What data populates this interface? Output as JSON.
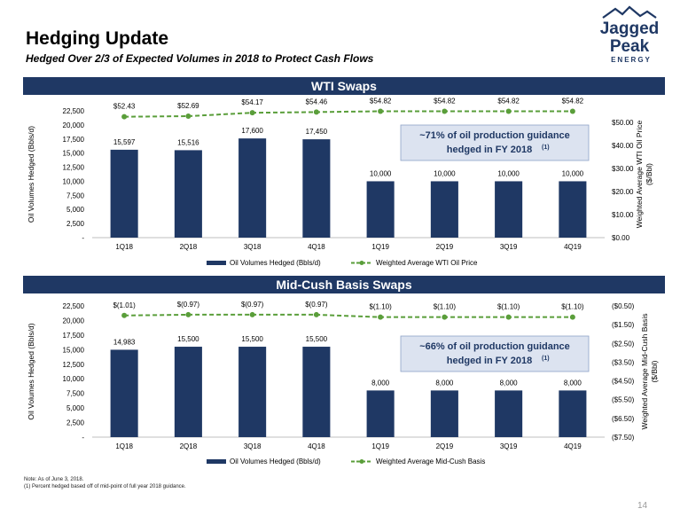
{
  "header": {
    "title": "Hedging Update",
    "subtitle": "Hedged Over 2/3 of Expected Volumes in 2018 to Protect Cash Flows"
  },
  "logo": {
    "line1": "Jagged",
    "line2": "Peak",
    "line3": "ENERGY"
  },
  "colors": {
    "bar": "#1f3864",
    "line": "#5a9e3a",
    "callout_bg": "#dce3f0",
    "callout_text": "#1f3864"
  },
  "chart_data": [
    {
      "type": "bar",
      "title": "WTI Swaps",
      "categories": [
        "1Q18",
        "2Q18",
        "3Q18",
        "4Q18",
        "1Q19",
        "2Q19",
        "3Q19",
        "4Q19"
      ],
      "series": [
        {
          "name": "Oil Volumes Hedged (Bbls/d)",
          "type": "bar",
          "axis": "left",
          "values": [
            15597,
            15516,
            17600,
            17450,
            10000,
            10000,
            10000,
            10000
          ],
          "labels": [
            "15,597",
            "15,516",
            "17,600",
            "17,450",
            "10,000",
            "10,000",
            "10,000",
            "10,000"
          ]
        },
        {
          "name": "Weighted Average WTI Oil Price",
          "type": "line",
          "axis": "right",
          "values": [
            52.43,
            52.69,
            54.17,
            54.46,
            54.82,
            54.82,
            54.82,
            54.82
          ],
          "labels": [
            "$52.43",
            "$52.69",
            "$54.17",
            "$54.46",
            "$54.82",
            "$54.82",
            "$54.82",
            "$54.82"
          ]
        }
      ],
      "ylabel": "Oil Volumes Hedged (Bbls/d)",
      "ylabel_right": "Weighted Average WTI Oil Price ($/Bbl)",
      "ylim": [
        0,
        22500
      ],
      "ylim_right": [
        0,
        55
      ],
      "yticks": [
        "-",
        "2,500",
        "5,000",
        "7,500",
        "10,000",
        "12,500",
        "15,000",
        "17,500",
        "20,000",
        "22,500"
      ],
      "yticks_right": [
        {
          "value": 0,
          "label": "$0.00"
        },
        {
          "value": 10,
          "label": "$10.00"
        },
        {
          "value": 20,
          "label": "$20.00"
        },
        {
          "value": 30,
          "label": "$30.00"
        },
        {
          "value": 40,
          "label": "$40.00"
        },
        {
          "value": 50,
          "label": "$50.00"
        }
      ],
      "callout": {
        "line1": "~71% of oil production guidance",
        "line2": "hedged in FY 2018",
        "sup": "(1)"
      },
      "legend": "bottom",
      "grid": false
    },
    {
      "type": "bar",
      "title": "Mid-Cush Basis Swaps",
      "categories": [
        "1Q18",
        "2Q18",
        "3Q18",
        "4Q18",
        "1Q19",
        "2Q19",
        "3Q19",
        "4Q19"
      ],
      "series": [
        {
          "name": "Oil Volumes Hedged (Bbls/d)",
          "type": "bar",
          "axis": "left",
          "values": [
            14983,
            15500,
            15500,
            15500,
            8000,
            8000,
            8000,
            8000
          ],
          "labels": [
            "14,983",
            "15,500",
            "15,500",
            "15,500",
            "8,000",
            "8,000",
            "8,000",
            "8,000"
          ]
        },
        {
          "name": "Weighted Average Mid-Cush Basis",
          "type": "line",
          "axis": "right",
          "values": [
            -1.01,
            -0.97,
            -0.97,
            -0.97,
            -1.1,
            -1.1,
            -1.1,
            -1.1
          ],
          "labels": [
            "$(1.01)",
            "$(0.97)",
            "$(0.97)",
            "$(0.97)",
            "$(1.10)",
            "$(1.10)",
            "$(1.10)",
            "$(1.10)"
          ]
        }
      ],
      "ylabel": "Oil Volumes Hedged (Bbls/d)",
      "ylabel_right": "Weighted Average Mid-Cush Basis ($/Bbl)",
      "ylim": [
        0,
        22500
      ],
      "ylim_right": [
        -7.5,
        -0.5
      ],
      "yticks": [
        "-",
        "2,500",
        "5,000",
        "7,500",
        "10,000",
        "12,500",
        "15,000",
        "17,500",
        "20,000",
        "22,500"
      ],
      "yticks_right": [
        {
          "value": -7.5,
          "label": "($7.50)"
        },
        {
          "value": -6.5,
          "label": "($6.50)"
        },
        {
          "value": -5.5,
          "label": "($5.50)"
        },
        {
          "value": -4.5,
          "label": "($4.50)"
        },
        {
          "value": -3.5,
          "label": "($3.50)"
        },
        {
          "value": -2.5,
          "label": "($2.50)"
        },
        {
          "value": -1.5,
          "label": "($1.50)"
        },
        {
          "value": -0.5,
          "label": "($0.50)"
        }
      ],
      "callout": {
        "line1": "~66% of oil production guidance",
        "line2": "hedged in FY 2018",
        "sup": "(1)"
      },
      "legend": "bottom",
      "grid": false
    }
  ],
  "notes": {
    "line1": "Note: As of June 3, 2018.",
    "line2": "(1)     Percent hedged based off of mid-point of full year 2018 guidance."
  },
  "page_number": "14"
}
